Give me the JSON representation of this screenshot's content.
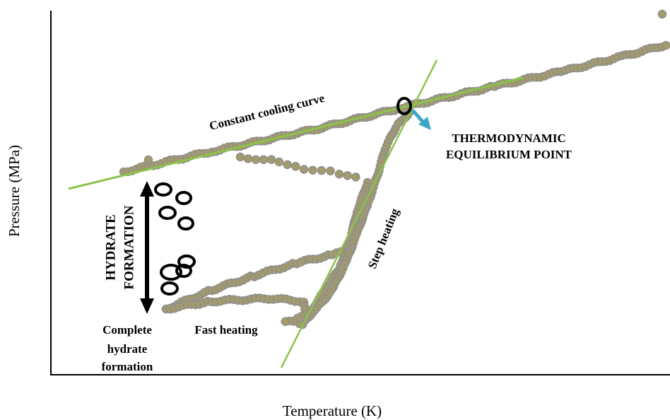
{
  "axes": {
    "x_label": "Temperature (K)",
    "y_label": "Pressure (MPa)"
  },
  "annotations": {
    "cooling": "Constant cooling curve",
    "equilibrium": [
      "THERMODYNAMIC",
      "EQUILIBRIUM POINT"
    ],
    "step_heating": "Step heating",
    "hydrate_formation": [
      "HYDRATE",
      "FORMATION"
    ],
    "complete": [
      "Complete",
      "hydrate",
      "formation"
    ],
    "fast_heating": "Fast heating"
  }
}
